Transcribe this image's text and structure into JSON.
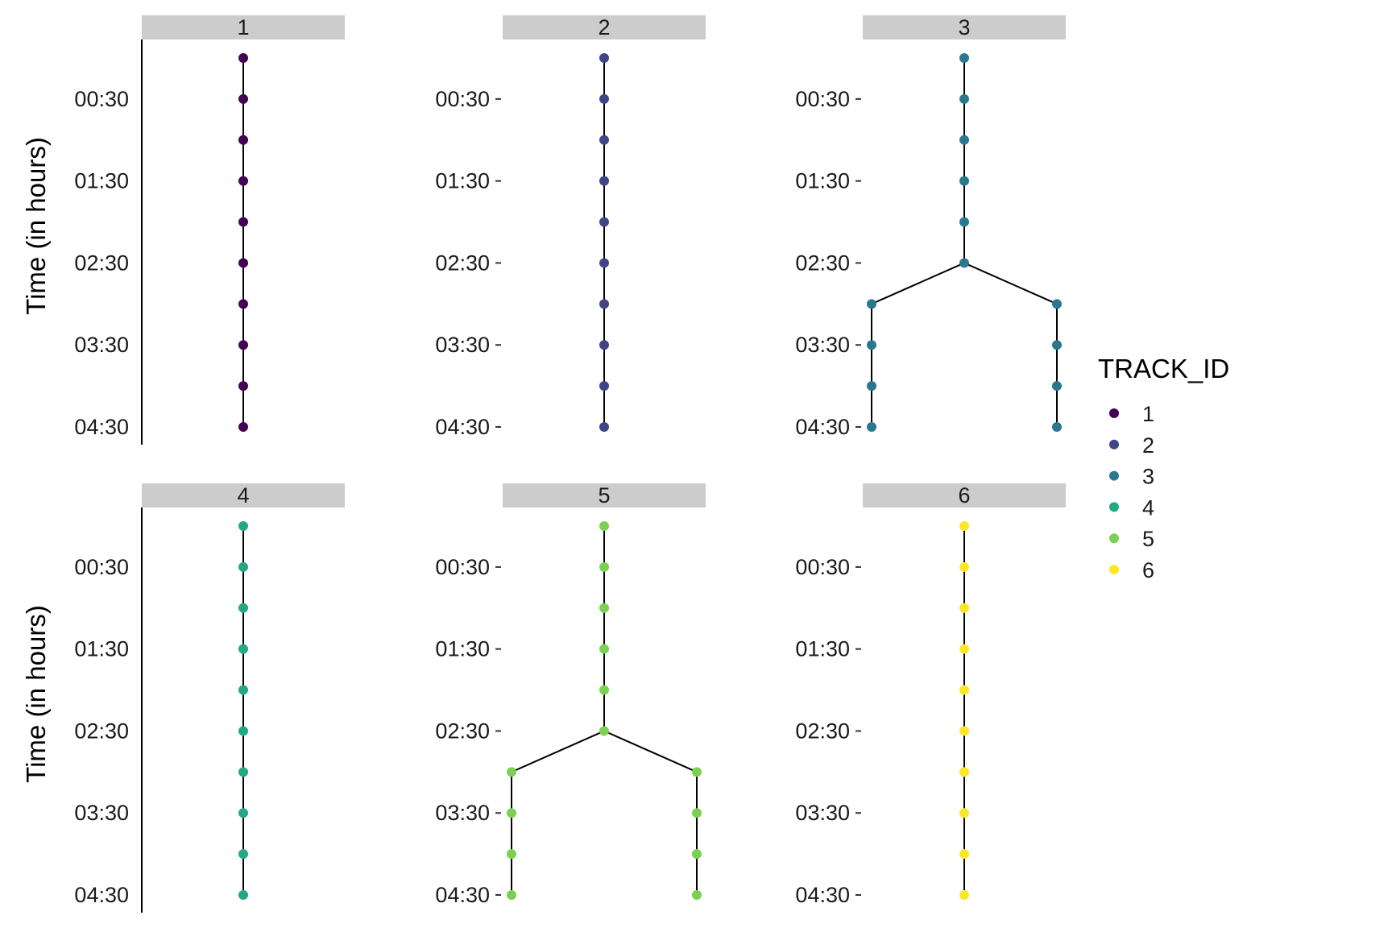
{
  "chart_data": {
    "type": "scatter",
    "ylabel": "Time (in hours)",
    "y_tick_labels": [
      "00:30",
      "01:30",
      "02:30",
      "03:30",
      "04:30"
    ],
    "y_ticks_hours": [
      0.5,
      1.5,
      2.5,
      3.5,
      4.5
    ],
    "ylim_hours": [
      -0.25,
      4.6
    ],
    "y_reversed": true,
    "legend": {
      "title": "TRACK_ID",
      "position": "right",
      "items": [
        {
          "label": "1",
          "color": "#440154"
        },
        {
          "label": "2",
          "color": "#414487"
        },
        {
          "label": "3",
          "color": "#2a788e"
        },
        {
          "label": "4",
          "color": "#22a884"
        },
        {
          "label": "5",
          "color": "#7ad151"
        },
        {
          "label": "6",
          "color": "#fde725"
        }
      ]
    },
    "panels": [
      {
        "strip": "1",
        "color": "#440154",
        "branching": false,
        "times_hours": [
          0,
          0.5,
          1,
          1.5,
          2,
          2.5,
          3,
          3.5,
          4,
          4.5
        ]
      },
      {
        "strip": "2",
        "color": "#414487",
        "branching": false,
        "times_hours": [
          0,
          0.5,
          1,
          1.5,
          2,
          2.5,
          3,
          3.5,
          4,
          4.5
        ]
      },
      {
        "strip": "3",
        "color": "#2a788e",
        "branching": true,
        "times_hours": [
          0,
          0.5,
          1,
          1.5,
          2,
          2.5
        ],
        "branch_times_hours": [
          3,
          3.5,
          4,
          4.5
        ]
      },
      {
        "strip": "4",
        "color": "#22a884",
        "branching": false,
        "times_hours": [
          0,
          0.5,
          1,
          1.5,
          2,
          2.5,
          3,
          3.5,
          4,
          4.5
        ]
      },
      {
        "strip": "5",
        "color": "#7ad151",
        "branching": true,
        "times_hours": [
          0,
          0.5,
          1,
          1.5,
          2,
          2.5
        ],
        "branch_times_hours": [
          3,
          3.5,
          4,
          4.5
        ]
      },
      {
        "strip": "6",
        "color": "#fde725",
        "branching": false,
        "times_hours": [
          0,
          0.5,
          1,
          1.5,
          2,
          2.5,
          3,
          3.5,
          4,
          4.5
        ]
      }
    ]
  }
}
